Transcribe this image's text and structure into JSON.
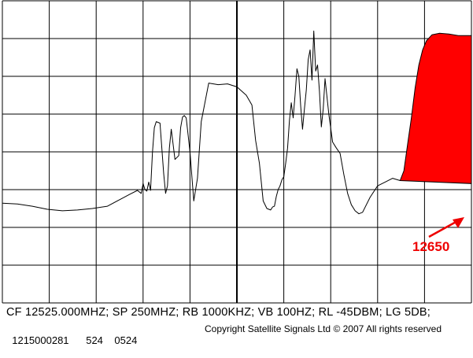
{
  "chart_data": {
    "type": "line",
    "title": "",
    "xlabel": "",
    "ylabel": "",
    "grid": true,
    "x_range_mhz": [
      12400,
      12650
    ],
    "y_range_db": [
      -85,
      -45
    ],
    "series": [
      {
        "x": [
          12400,
          12408,
          12416,
          12424,
          12432,
          12440,
          12448,
          12456,
          12462,
          12468,
          12472,
          12474,
          12475,
          12476,
          12477,
          12478,
          12479,
          12480,
          12481,
          12482,
          12484,
          12486,
          12487,
          12488,
          12489,
          12490,
          12492,
          12494,
          12495,
          12496,
          12497,
          12498,
          12500,
          12502,
          12504,
          12506,
          12510,
          12515,
          12520,
          12525,
          12530,
          12533,
          12535,
          12537,
          12539,
          12541,
          12543,
          12544,
          12545,
          12546,
          12547,
          12548,
          12549,
          12550,
          12551,
          12552,
          12553,
          12554,
          12555,
          12556,
          12557,
          12558,
          12559,
          12560,
          12561,
          12562,
          12563,
          12564,
          12565,
          12566,
          12567,
          12568,
          12569,
          12570,
          12571,
          12572,
          12574,
          12576,
          12578,
          12580,
          12582,
          12584,
          12586,
          12588,
          12590,
          12592,
          12596,
          12600,
          12604,
          12608,
          12612
        ],
        "y": [
          -71.8,
          -71.9,
          -72.2,
          -72.6,
          -72.8,
          -72.7,
          -72.5,
          -72.2,
          -71.4,
          -70.6,
          -70.1,
          -70.5,
          -69.2,
          -70.0,
          -70.2,
          -69.0,
          -70.1,
          -65.1,
          -61.8,
          -61.0,
          -61.2,
          -67.9,
          -70.5,
          -69.5,
          -64.5,
          -62.0,
          -66.0,
          -65.5,
          -61.8,
          -60.4,
          -60.2,
          -60.5,
          -65.0,
          -71.5,
          -68.5,
          -61.0,
          -55.9,
          -56.1,
          -56.0,
          -56.4,
          -57.5,
          -58.8,
          -63.5,
          -66.5,
          -71.5,
          -72.5,
          -72.7,
          -72.3,
          -72.2,
          -70.9,
          -70.0,
          -69.5,
          -68.7,
          -68.3,
          -66.5,
          -64.5,
          -60.8,
          -58.5,
          -60.5,
          -57.5,
          -54.0,
          -55.0,
          -59.0,
          -62.0,
          -59.3,
          -56.8,
          -52.8,
          -51.5,
          -55.5,
          -49.0,
          -54.3,
          -53.5,
          -57.0,
          -61.7,
          -59.3,
          -55.3,
          -60.0,
          -63.7,
          -64.5,
          -65.2,
          -68.0,
          -70.5,
          -72.0,
          -72.8,
          -73.2,
          -73.0,
          -71.0,
          -69.5,
          -69.0,
          -68.5,
          -68.8
        ]
      }
    ],
    "annotations": [
      {
        "text": "12650",
        "color": "#ee0000",
        "fill_from_x": 12612,
        "fill_to_x": 12650
      }
    ],
    "colors": {
      "trace": "#000000",
      "grid": "#000000",
      "highlight": "#ff0000",
      "label": "#ee0000"
    }
  },
  "footer": {
    "settings": "CF 12525.000MHZ; SP 250MHZ; RB 1000KHZ; VB 100HZ; RL -45DBM; LG 5DB;",
    "id_code": "1215000281",
    "num_a": "524",
    "num_b": "0524",
    "copyright_pre": "Copyright Satellite Signals Ltd",
    "copyright_symbol": "©",
    "copyright_post": "2007 All rights reserved"
  }
}
